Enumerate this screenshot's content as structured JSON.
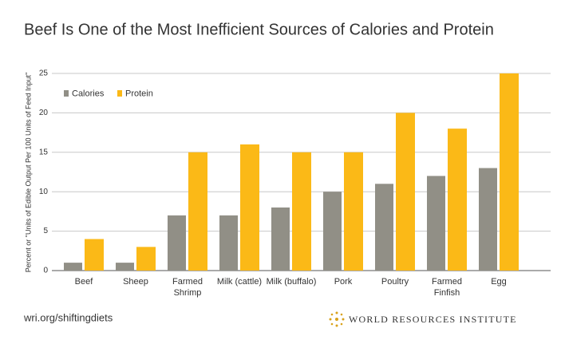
{
  "chart_data": {
    "type": "bar",
    "title": "Beef Is One of the Most Inefficient Sources of Calories and Protein",
    "y_label": "Percent or \"Units of Edible Output Per 100 Units of Feed Input\"",
    "categories": [
      "Beef",
      "Sheep",
      "Farmed Shrimp",
      "Milk (cattle)",
      "Milk (buffalo)",
      "Pork",
      "Poultry",
      "Farmed Finfish",
      "Egg"
    ],
    "series": [
      {
        "name": "Calories",
        "color": "#918f86",
        "values": [
          1,
          1,
          7,
          7,
          8,
          10,
          11,
          12,
          13
        ]
      },
      {
        "name": "Protein",
        "color": "#fbb917",
        "values": [
          4,
          3,
          15,
          16,
          15,
          15,
          20,
          18,
          25
        ]
      }
    ],
    "ylim": [
      0,
      25
    ],
    "yticks": [
      0,
      5,
      10,
      15,
      20,
      25
    ],
    "grid": true,
    "legend": "top-left",
    "source": "wri.org/shiftingdiets",
    "publisher": "WORLD RESOURCES INSTITUTE"
  }
}
